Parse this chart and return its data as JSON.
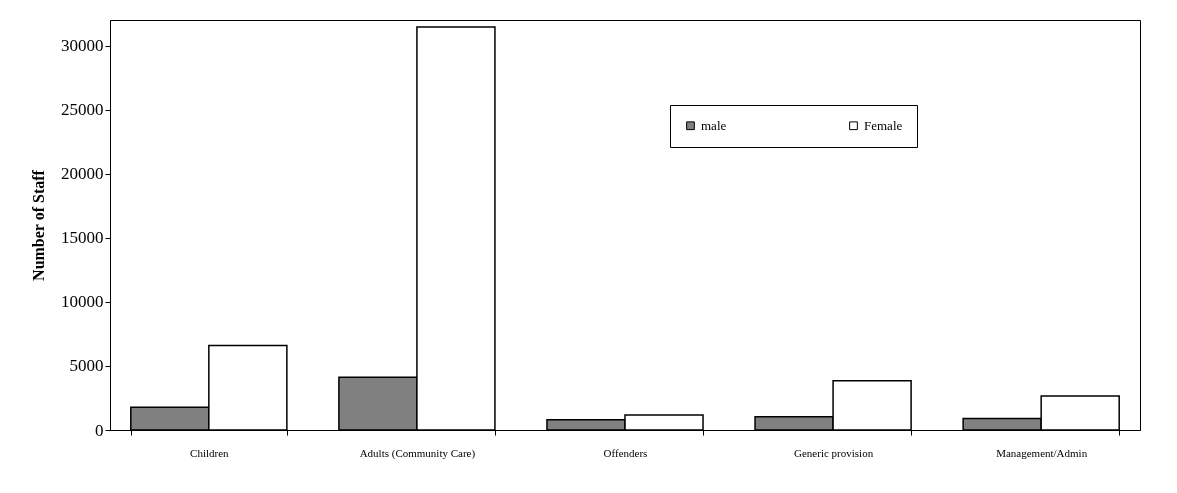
{
  "chart_data": {
    "type": "bar",
    "ylabel": "Number of Staff",
    "categories": [
      "Children",
      "Adults (Community Care)",
      "Offenders",
      "Generic provision",
      "Management/Admin"
    ],
    "series": [
      {
        "name": "male",
        "color": "#808080",
        "values": [
          1780,
          4110,
          800,
          1030,
          890
        ]
      },
      {
        "name": "Female",
        "color": "#ffffff",
        "values": [
          6600,
          31450,
          1180,
          3850,
          2660
        ]
      }
    ],
    "ylim": [
      0,
      32000
    ],
    "yticks": [
      0,
      5000,
      10000,
      15000,
      20000,
      25000,
      30000
    ],
    "grid": false,
    "legend": "top right"
  }
}
